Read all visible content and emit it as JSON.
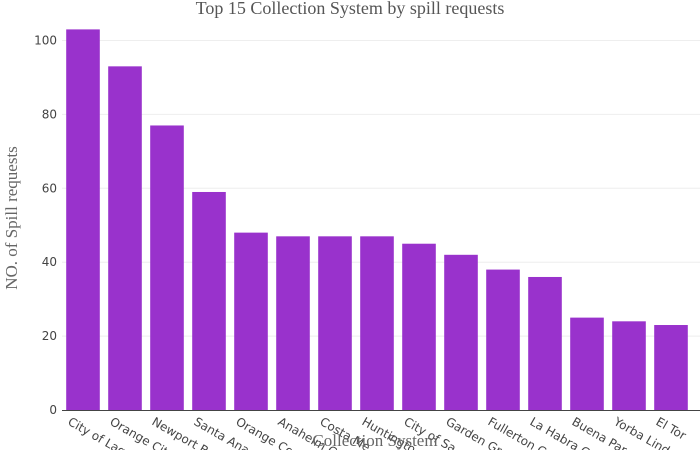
{
  "chart_data": {
    "type": "bar",
    "title": "Top 15 Collection System by spill requests",
    "xlabel": "Collection System",
    "ylabel": "NO. of Spill requests",
    "categories": [
      "City of Laguna Beach",
      "Orange City",
      "Newport Beach",
      "Santa Ana",
      "Orange County",
      "Anaheim City",
      "Costa Mesa",
      "Huntington Beach",
      "City of San Clemente",
      "Garden Grove",
      "Fullerton City",
      "La Habra City",
      "Buena Park",
      "Yorba Linda",
      "El Toro"
    ],
    "tick_labels": [
      "City of Lag",
      "Orange Cit",
      "Newport B",
      "Santa Ana",
      "Orange Co",
      "Anaheim C",
      "Costa Me",
      "Huntingto",
      "City of Sa",
      "Garden Gr",
      "Fullerton C",
      "La Habra C",
      "Buena Par",
      "Yorba Lind",
      "El Tor"
    ],
    "values": [
      103,
      93,
      77,
      59,
      48,
      47,
      47,
      47,
      45,
      42,
      38,
      36,
      25,
      24,
      23
    ],
    "ylim": [
      0,
      105
    ],
    "yticks": [
      0,
      20,
      40,
      60,
      80,
      100
    ],
    "bar_color": "#9932CC",
    "grid": true,
    "legend": "none"
  }
}
